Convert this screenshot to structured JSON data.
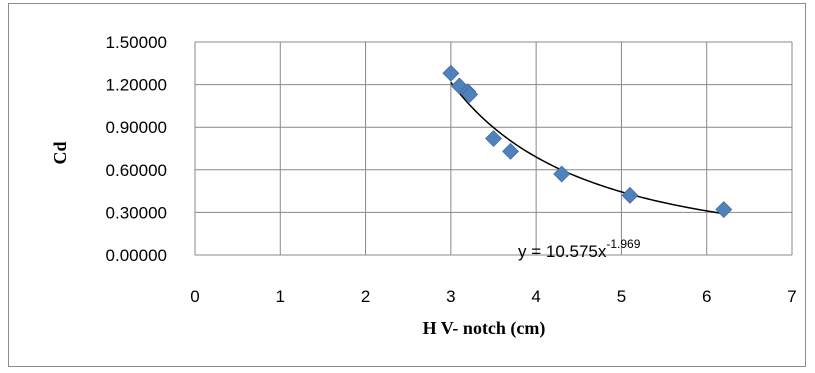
{
  "chart_data": {
    "type": "scatter",
    "xlabel": "H V- notch (cm)",
    "ylabel": "Cd",
    "xlim": [
      0,
      7
    ],
    "ylim": [
      0,
      1.5
    ],
    "x_ticks": [
      "0",
      "1",
      "2",
      "3",
      "4",
      "5",
      "6",
      "7"
    ],
    "y_ticks": [
      "0.00000",
      "0.30000",
      "0.60000",
      "0.90000",
      "1.20000",
      "1.50000"
    ],
    "grid": true,
    "marker": "diamond",
    "marker_color": "#4f81bd",
    "line_color": "#000000",
    "points": [
      {
        "x": 3.0,
        "y": 1.28
      },
      {
        "x": 3.1,
        "y": 1.19
      },
      {
        "x": 3.2,
        "y": 1.15
      },
      {
        "x": 3.22,
        "y": 1.13
      },
      {
        "x": 3.5,
        "y": 0.82
      },
      {
        "x": 3.7,
        "y": 0.73
      },
      {
        "x": 4.3,
        "y": 0.57
      },
      {
        "x": 5.1,
        "y": 0.42
      },
      {
        "x": 6.2,
        "y": 0.32
      }
    ],
    "trendline": {
      "type": "power",
      "a": 10.575,
      "b": -1.969,
      "x_range": [
        3.0,
        6.2
      ],
      "label_main": "y = 10.575x",
      "label_exp": "-1.969"
    }
  }
}
